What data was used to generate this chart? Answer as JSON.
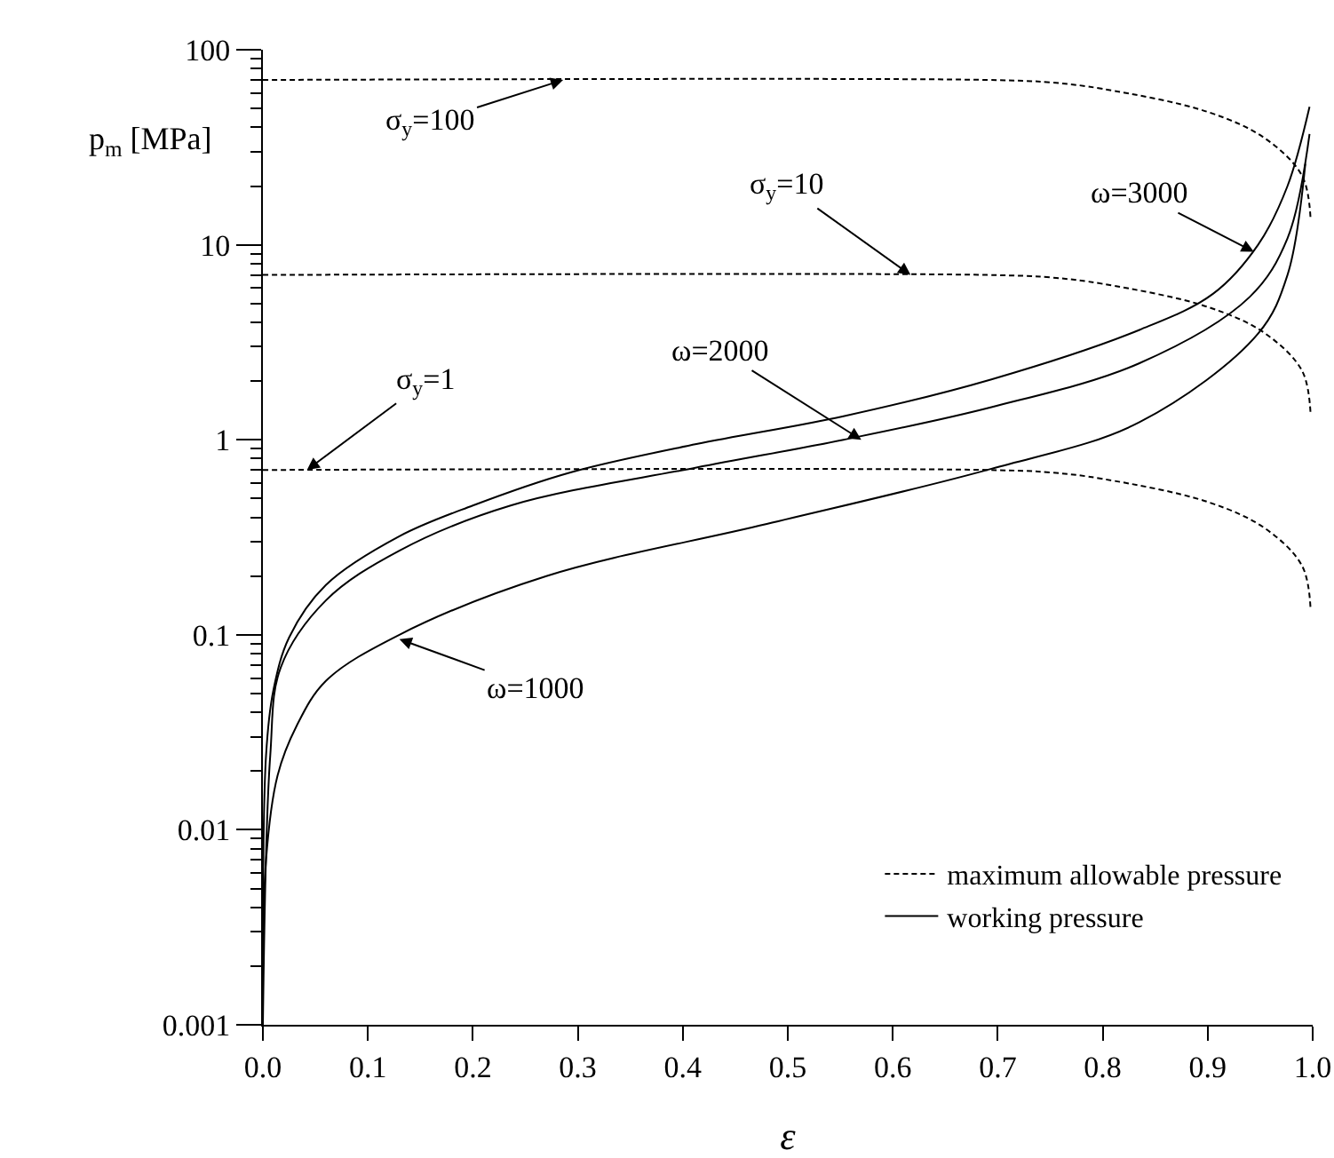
{
  "chart_data": {
    "type": "line",
    "xlabel": "ε",
    "ylabel": "p$_{m}$ [MPa]",
    "xlim": [
      0,
      1
    ],
    "xticks": [
      {
        "value": 0,
        "label": "0.0"
      },
      0.1,
      0.2,
      0.3,
      0.4,
      0.5,
      0.6,
      0.7,
      0.8,
      0.9,
      {
        "value": 1,
        "label": "1.0"
      }
    ],
    "ylim": [
      0.001,
      100
    ],
    "yticks": [
      0.001,
      0.01,
      0.1,
      1,
      10,
      100
    ],
    "log": "y",
    "grid": false,
    "legend": "bottom right",
    "marker": "none",
    "series": [
      {
        "name": "maximum allowable pressure",
        "color": "#000000",
        "line_style": "dashed",
        "x": [
          0,
          0.69,
          0.75,
          0.8,
          0.9,
          0.955,
          0.99,
          0.998
        ],
        "values": [
          0.7,
          0.7,
          0.68,
          0.63,
          0.48,
          0.35,
          0.225,
          0.135
        ]
      },
      {
        "color": "#000000",
        "line_style": "dashed",
        "x": [
          0,
          0.69,
          0.75,
          0.8,
          0.9,
          0.955,
          0.99,
          0.998
        ],
        "values": [
          7,
          7,
          6.8,
          6.3,
          4.8,
          3.5,
          2.25,
          1.35
        ]
      },
      {
        "color": "#000000",
        "line_style": "dashed",
        "x": [
          0,
          0.69,
          0.75,
          0.8,
          0.9,
          0.955,
          0.99,
          0.998
        ],
        "values": [
          70,
          70,
          68,
          63,
          48,
          35,
          22.5,
          13.5
        ]
      },
      {
        "name": "working pressure",
        "color": "#000000",
        "line_style": "solid",
        "x": [
          0,
          0.003,
          0.014,
          0.032,
          0.06,
          0.13,
          0.27,
          0.48,
          0.694,
          0.835,
          0.948,
          0.976,
          0.993
        ],
        "values": [
          0.001,
          0.007,
          0.019,
          0.034,
          0.058,
          0.1,
          0.2,
          0.37,
          0.71,
          1.23,
          3.5,
          7,
          26
        ]
      },
      {
        "color": "#000000",
        "line_style": "solid",
        "x": [
          0,
          0.007,
          0.017,
          0.06,
          0.13,
          0.236,
          0.413,
          0.553,
          0.694,
          0.835,
          0.94,
          0.976,
          0.997
        ],
        "values": [
          0.001,
          0.024,
          0.068,
          0.15,
          0.27,
          0.46,
          0.72,
          1.0,
          1.47,
          2.47,
          5.4,
          10.8,
          37
        ]
      },
      {
        "color": "#000000",
        "line_style": "solid",
        "x": [
          0,
          0.003,
          0.01,
          0.025,
          0.06,
          0.13,
          0.2,
          0.293,
          0.413,
          0.553,
          0.694,
          0.835,
          0.905,
          0.948,
          0.976,
          0.997
        ],
        "values": [
          0.001,
          0.024,
          0.052,
          0.097,
          0.18,
          0.32,
          0.46,
          0.68,
          0.95,
          1.32,
          2.04,
          3.66,
          5.6,
          10,
          20,
          51
        ]
      }
    ],
    "annotations": [
      {
        "text": "σ$_{y}$=100",
        "x": 0.286,
        "y": 70
      },
      {
        "text": "σ$_{y}$=10",
        "x": 0.617,
        "y": 7
      },
      {
        "text": "σ$_{y}$=1",
        "x": 0.042,
        "y": 0.7
      },
      {
        "text": "ω=2000",
        "x": 0.57,
        "y": 1.0
      },
      {
        "text": "ω=3000",
        "x": 0.944,
        "y": 9.2
      },
      {
        "text": "ω=1000",
        "x": 0.13,
        "y": 0.095
      }
    ]
  }
}
